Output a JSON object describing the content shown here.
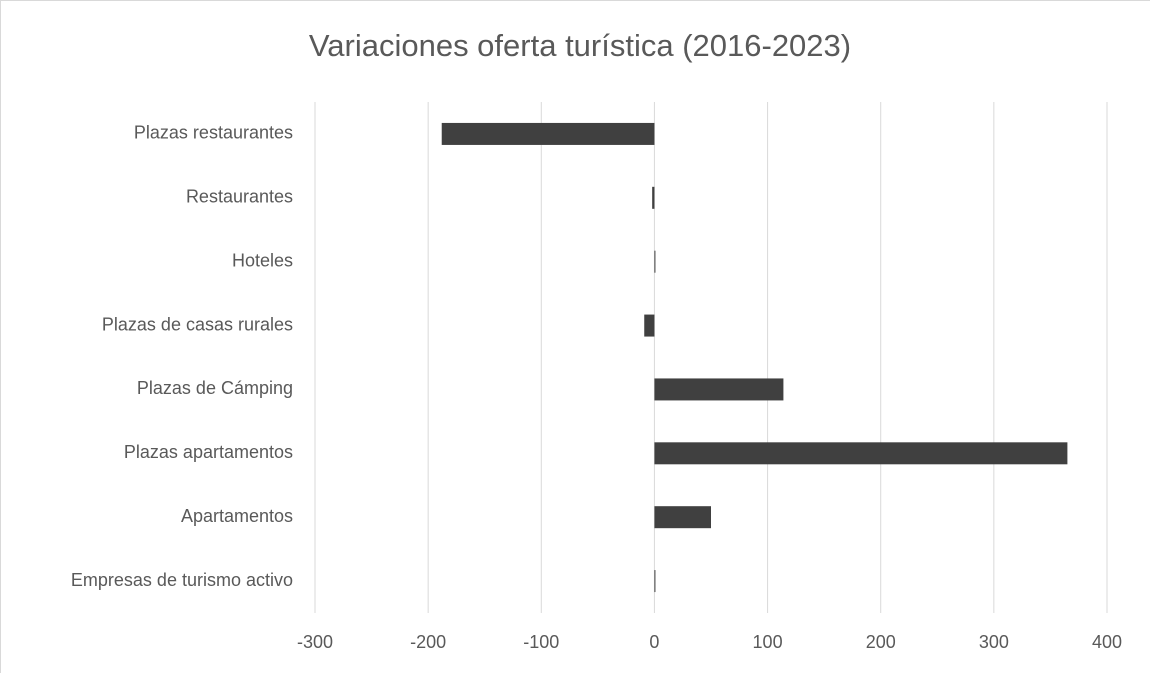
{
  "chart_data": {
    "type": "hbar",
    "title": "Variaciones oferta turística (2016-2023)",
    "categories": [
      "Plazas restaurantes",
      "Restaurantes",
      "Hoteles",
      "Plazas de casas rurales",
      "Plazas de Cámping",
      "Plazas apartamentos",
      "Apartamentos",
      "Empresas de turismo activo"
    ],
    "values": [
      -188,
      -2,
      0,
      -9,
      114,
      365,
      50,
      0
    ],
    "color": "#404040",
    "xlim": [
      -300,
      400
    ],
    "xticks": [
      -300,
      -200,
      -100,
      0,
      100,
      200,
      300,
      400
    ],
    "grid": true
  }
}
